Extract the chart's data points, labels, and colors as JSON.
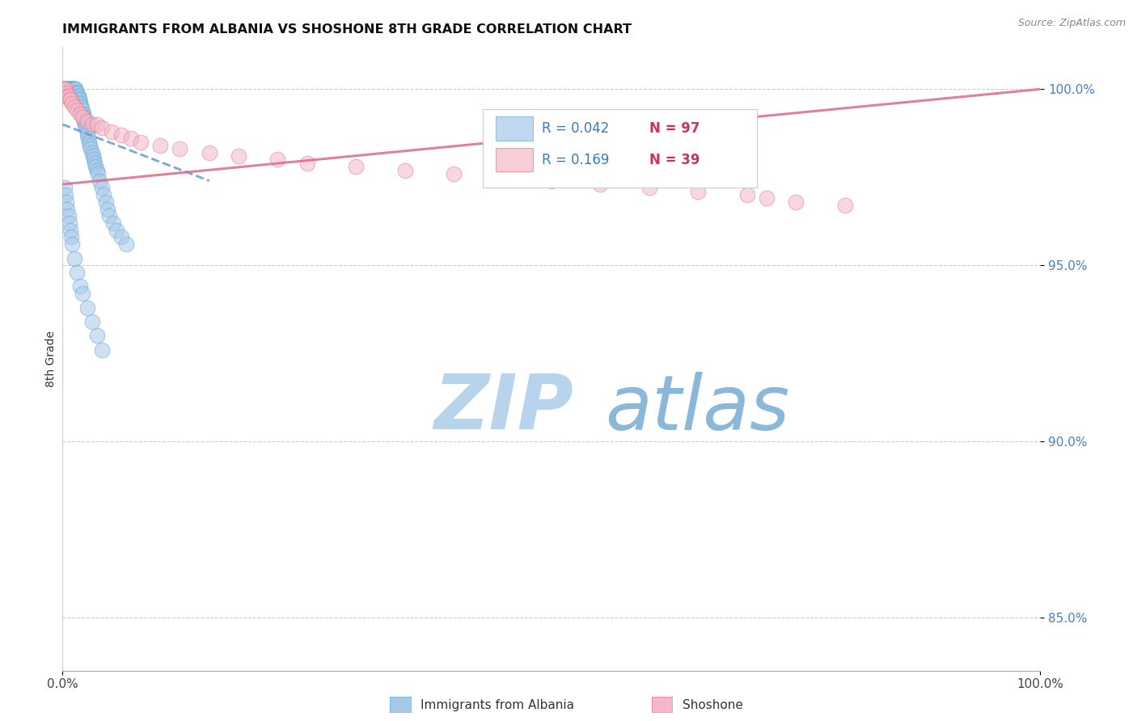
{
  "title": "IMMIGRANTS FROM ALBANIA VS SHOSHONE 8TH GRADE CORRELATION CHART",
  "source_text": "Source: ZipAtlas.com",
  "ylabel": "8th Grade",
  "xlim": [
    0.0,
    1.0
  ],
  "ylim": [
    0.835,
    1.012
  ],
  "yticks": [
    0.85,
    0.9,
    0.95,
    1.0
  ],
  "ytick_labels": [
    "85.0%",
    "90.0%",
    "95.0%",
    "100.0%"
  ],
  "legend_R_albania": "R = 0.042",
  "legend_N_albania": "N = 97",
  "legend_R_shoshone": "R = 0.169",
  "legend_N_shoshone": "N = 39",
  "color_albania": "#a8c8e8",
  "color_albania_edge": "#6baed6",
  "color_shoshone": "#f4b8c8",
  "color_shoshone_edge": "#e87d96",
  "color_albania_line": "#5b9bd5",
  "color_shoshone_line": "#d96b8a",
  "watermark_zip_color": "#cde0f0",
  "watermark_atlas_color": "#a0bfd8",
  "background_color": "#ffffff",
  "title_fontsize": 11.5,
  "albania_x": [
    0.001,
    0.001,
    0.002,
    0.002,
    0.002,
    0.003,
    0.003,
    0.003,
    0.003,
    0.004,
    0.004,
    0.004,
    0.005,
    0.005,
    0.005,
    0.006,
    0.006,
    0.006,
    0.007,
    0.007,
    0.007,
    0.008,
    0.008,
    0.009,
    0.009,
    0.009,
    0.01,
    0.01,
    0.01,
    0.011,
    0.011,
    0.012,
    0.012,
    0.012,
    0.013,
    0.013,
    0.014,
    0.014,
    0.015,
    0.015,
    0.016,
    0.016,
    0.017,
    0.017,
    0.018,
    0.018,
    0.019,
    0.019,
    0.02,
    0.02,
    0.021,
    0.021,
    0.022,
    0.022,
    0.023,
    0.023,
    0.024,
    0.025,
    0.025,
    0.026,
    0.027,
    0.028,
    0.029,
    0.03,
    0.031,
    0.032,
    0.033,
    0.034,
    0.035,
    0.036,
    0.038,
    0.04,
    0.042,
    0.044,
    0.046,
    0.048,
    0.052,
    0.055,
    0.06,
    0.065,
    0.002,
    0.003,
    0.004,
    0.005,
    0.006,
    0.007,
    0.008,
    0.009,
    0.01,
    0.012,
    0.015,
    0.018,
    0.02,
    0.025,
    0.03,
    0.035,
    0.04
  ],
  "albania_y": [
    1.0,
    1.0,
    1.0,
    1.0,
    1.0,
    1.0,
    1.0,
    1.0,
    1.0,
    1.0,
    1.0,
    1.0,
    1.0,
    1.0,
    1.0,
    1.0,
    1.0,
    1.0,
    1.0,
    1.0,
    1.0,
    1.0,
    1.0,
    1.0,
    1.0,
    1.0,
    1.0,
    1.0,
    1.0,
    1.0,
    1.0,
    1.0,
    1.0,
    1.0,
    1.0,
    1.0,
    0.999,
    0.999,
    0.999,
    0.999,
    0.998,
    0.998,
    0.997,
    0.997,
    0.996,
    0.996,
    0.995,
    0.995,
    0.994,
    0.993,
    0.993,
    0.992,
    0.992,
    0.991,
    0.99,
    0.99,
    0.989,
    0.988,
    0.987,
    0.986,
    0.985,
    0.984,
    0.983,
    0.982,
    0.981,
    0.98,
    0.979,
    0.978,
    0.977,
    0.976,
    0.974,
    0.972,
    0.97,
    0.968,
    0.966,
    0.964,
    0.962,
    0.96,
    0.958,
    0.956,
    0.972,
    0.97,
    0.968,
    0.966,
    0.964,
    0.962,
    0.96,
    0.958,
    0.956,
    0.952,
    0.948,
    0.944,
    0.942,
    0.938,
    0.934,
    0.93,
    0.926
  ],
  "shoshone_x": [
    0.001,
    0.002,
    0.003,
    0.004,
    0.005,
    0.006,
    0.007,
    0.008,
    0.01,
    0.012,
    0.015,
    0.018,
    0.02,
    0.025,
    0.03,
    0.035,
    0.04,
    0.05,
    0.06,
    0.07,
    0.08,
    0.1,
    0.12,
    0.15,
    0.18,
    0.22,
    0.25,
    0.3,
    0.35,
    0.4,
    0.45,
    0.5,
    0.55,
    0.6,
    0.65,
    0.7,
    0.72,
    0.75,
    0.8
  ],
  "shoshone_y": [
    1.0,
    1.0,
    1.0,
    0.999,
    0.998,
    0.998,
    0.997,
    0.997,
    0.996,
    0.995,
    0.994,
    0.993,
    0.992,
    0.991,
    0.99,
    0.99,
    0.989,
    0.988,
    0.987,
    0.986,
    0.985,
    0.984,
    0.983,
    0.982,
    0.981,
    0.98,
    0.979,
    0.978,
    0.977,
    0.976,
    0.975,
    0.974,
    0.973,
    0.972,
    0.971,
    0.97,
    0.969,
    0.968,
    0.967
  ],
  "albania_line_x": [
    0.0,
    0.15
  ],
  "albania_line_y": [
    0.99,
    0.974
  ],
  "shoshone_line_x": [
    0.0,
    1.0
  ],
  "shoshone_line_y": [
    0.973,
    1.0
  ]
}
